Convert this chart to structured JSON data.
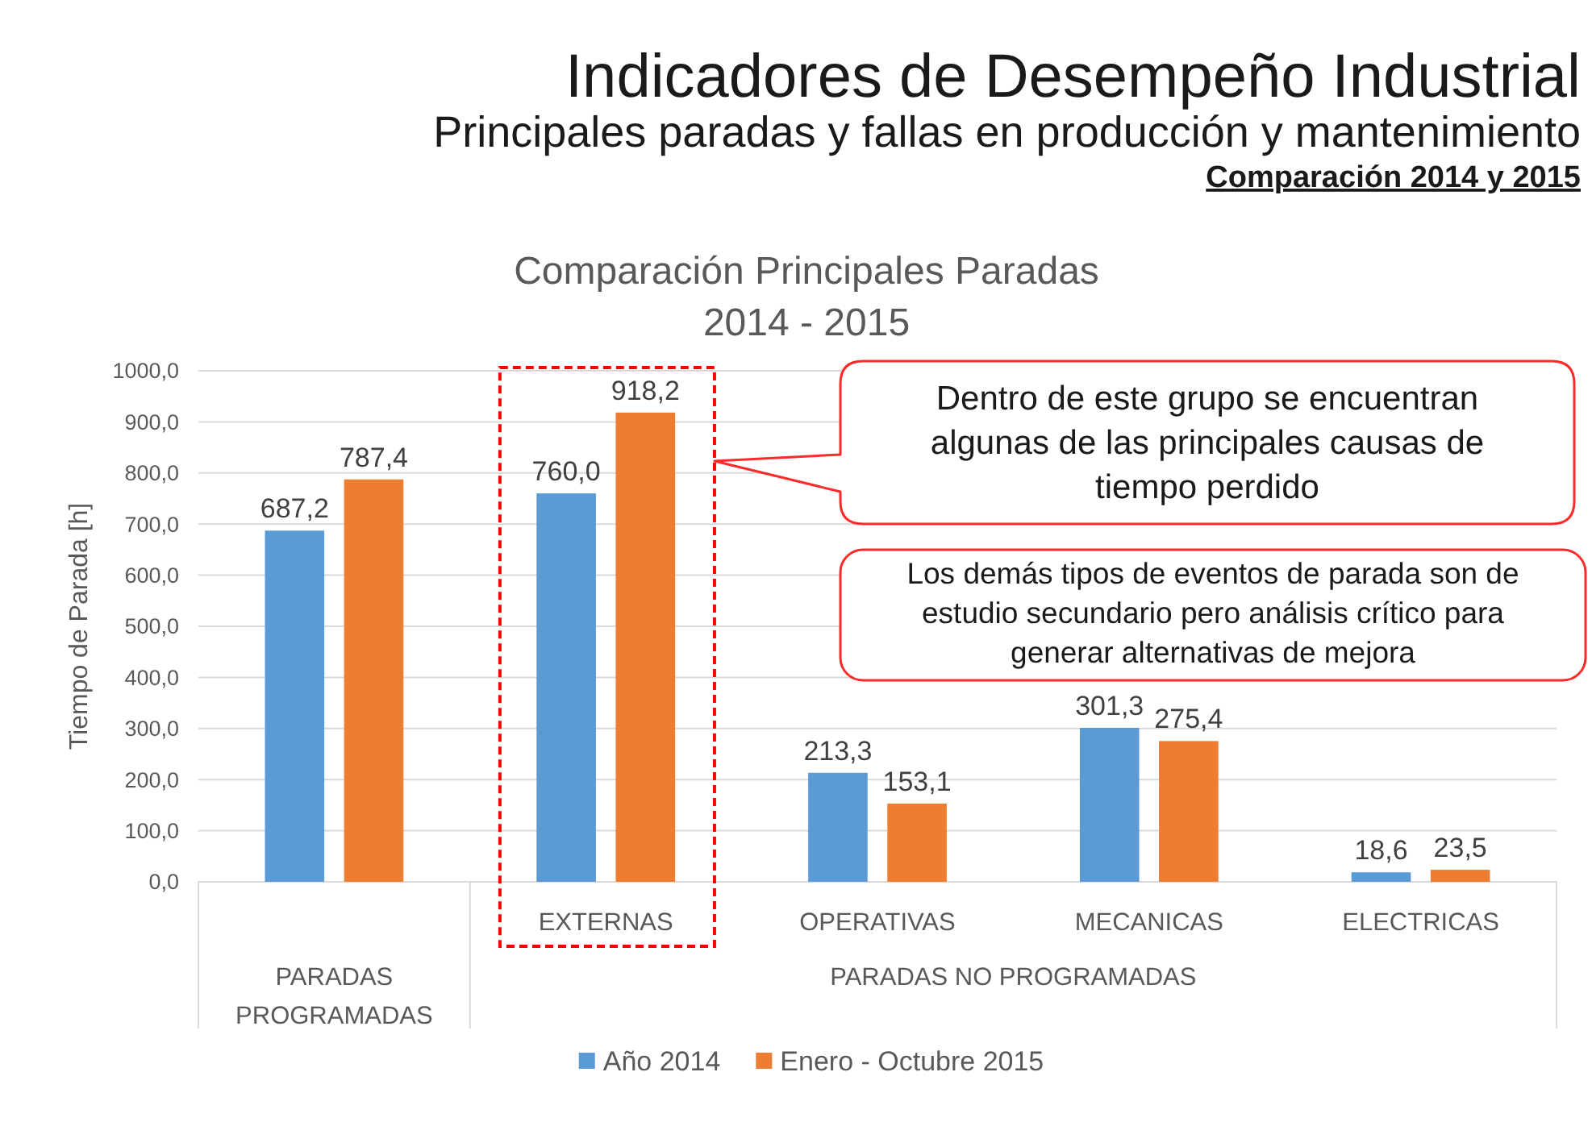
{
  "chart_data": {
    "type": "bar",
    "title": "Indicadores de Desempeño Industrial",
    "subtitle": "Principales paradas y fallas en producción y mantenimiento\nComparación 2014 y 2015",
    "ylabel": "Tiempo de Parada [h]",
    "categories": [
      null,
      "EXTERNAS",
      "OPERATIVAS",
      "MECANICAS",
      "ELECTRICAS"
    ],
    "series": [
      {
        "name": "Año 2014",
        "color": "#5b9bd5",
        "values": [
          687.2,
          760.0,
          213.3,
          301.3,
          18.6
        ],
        "value_labels": [
          "687,2",
          "760,0",
          "213,3",
          "301,3",
          "18,6"
        ]
      },
      {
        "name": "Enero - Octubre 2015",
        "color": "#ed7d31",
        "values": [
          787.4,
          918.2,
          153.1,
          275.4,
          23.5
        ],
        "value_labels": [
          "787,4",
          "918,2",
          "153,1",
          "275,4",
          "23,5"
        ]
      }
    ],
    "ylim": [
      0,
      1000
    ],
    "yticks": [
      {
        "value": 0,
        "label": "0,0"
      },
      {
        "value": 100,
        "label": "100,0"
      },
      {
        "value": 200,
        "label": "200,0"
      },
      {
        "value": 300,
        "label": "300,0"
      },
      {
        "value": 400,
        "label": "400,0"
      },
      {
        "value": 500,
        "label": "500,0"
      },
      {
        "value": 600,
        "label": "600,0"
      },
      {
        "value": 700,
        "label": "700,0"
      },
      {
        "value": 800,
        "label": "800,0"
      },
      {
        "value": 900,
        "label": "900,0"
      },
      {
        "value": 1000,
        "label": "1000,0"
      }
    ],
    "grid": "y",
    "legend": "bottom",
    "annotations": [
      "Comparación Principales Paradas\n2014 - 2015",
      "Dentro de este grupo se encuentran\nalgunas de las principales causas de\ntiempo perdido",
      "Los demás tipos de eventos de parada son de\nestudio secundario pero análisis crítico para\ngenerar alternativas de mejora",
      "PARADAS PROGRAMADAS",
      "PARADAS NO PROGRAMADAS"
    ]
  }
}
